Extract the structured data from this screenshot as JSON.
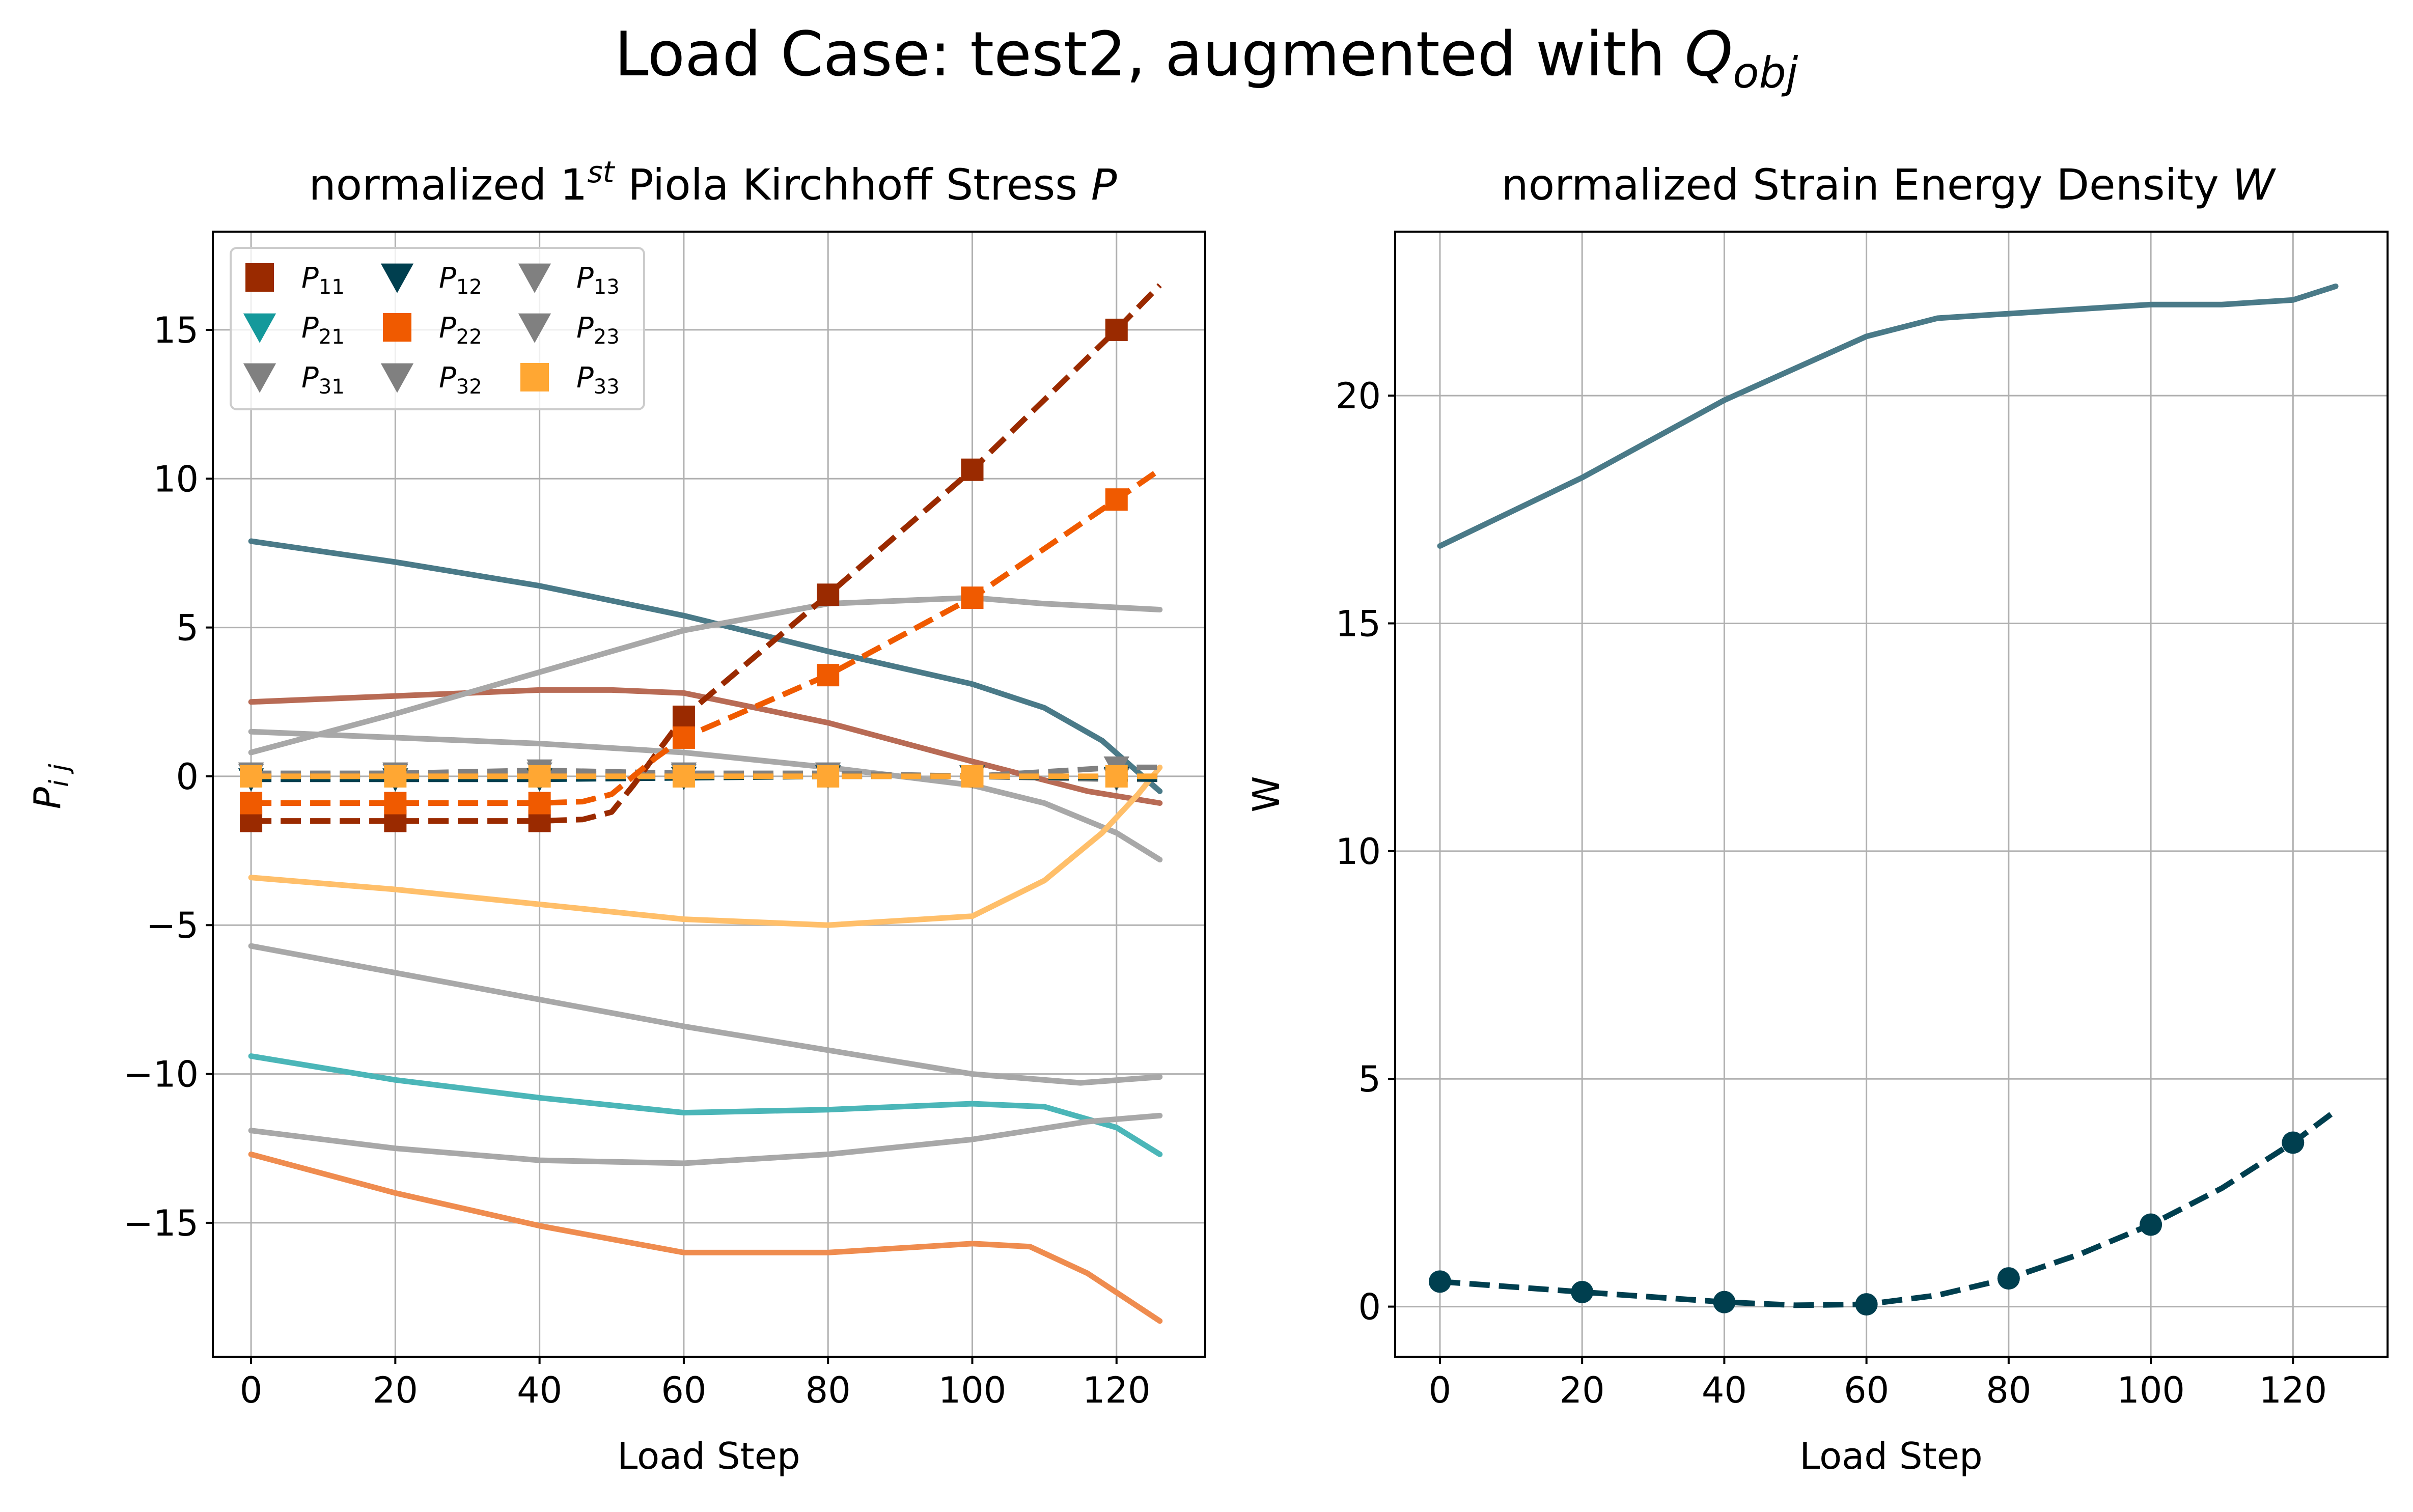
{
  "figure": {
    "suptitle_main": "Load Case: test2, augmented with ",
    "suptitle_math_Q": "Q",
    "suptitle_math_sub": "obj"
  },
  "chart_data": [
    {
      "type": "line",
      "title_main": "normalized 1",
      "title_sup": "st",
      "title_rest": " Piola Kirchhoff Stress ",
      "title_var": "P",
      "xlabel": "Load Step",
      "ylabel_main": "P",
      "ylabel_sub": "i j",
      "xlim": [
        -5.3,
        132.3
      ],
      "ylim": [
        -19.5,
        18.3
      ],
      "xticks": [
        0,
        20,
        40,
        60,
        80,
        100,
        120
      ],
      "yticks": [
        -15,
        -10,
        -5,
        0,
        5,
        10,
        15
      ],
      "xtick_labels": [
        "0",
        "20",
        "40",
        "60",
        "80",
        "100",
        "120"
      ],
      "ytick_labels": [
        "−15",
        "−10",
        "−5",
        "0",
        "5",
        "10",
        "15"
      ],
      "grid": true,
      "legend_placement": "top-left",
      "legend": [
        {
          "main": "P",
          "sub": "11",
          "marker": "square",
          "color": "#9a2a00"
        },
        {
          "main": "P",
          "sub": "12",
          "marker": "triangle-down",
          "color": "#003f4f"
        },
        {
          "main": "P",
          "sub": "13",
          "marker": "triangle-down",
          "color": "#808080"
        },
        {
          "main": "P",
          "sub": "21",
          "marker": "triangle-down",
          "color": "#14999b"
        },
        {
          "main": "P",
          "sub": "22",
          "marker": "square",
          "color": "#f05a00"
        },
        {
          "main": "P",
          "sub": "23",
          "marker": "triangle-down",
          "color": "#808080"
        },
        {
          "main": "P",
          "sub": "31",
          "marker": "triangle-down",
          "color": "#808080"
        },
        {
          "main": "P",
          "sub": "32",
          "marker": "triangle-down",
          "color": "#808080"
        },
        {
          "main": "P",
          "sub": "33",
          "marker": "square",
          "color": "#ffa733"
        }
      ],
      "solid_series": [
        {
          "color": "#4a7a88",
          "points": [
            [
              0,
              7.9
            ],
            [
              20,
              7.2
            ],
            [
              40,
              6.4
            ],
            [
              60,
              5.4
            ],
            [
              80,
              4.2
            ],
            [
              100,
              3.1
            ],
            [
              110,
              2.3
            ],
            [
              118,
              1.2
            ],
            [
              126,
              -0.5
            ]
          ]
        },
        {
          "color": "#b86b55",
          "points": [
            [
              0,
              2.5
            ],
            [
              20,
              2.7
            ],
            [
              40,
              2.9
            ],
            [
              50,
              2.9
            ],
            [
              60,
              2.8
            ],
            [
              80,
              1.8
            ],
            [
              100,
              0.5
            ],
            [
              116,
              -0.5
            ],
            [
              126,
              -0.9
            ]
          ]
        },
        {
          "color": "#a8a8a8",
          "points": [
            [
              0,
              0.8
            ],
            [
              20,
              2.1
            ],
            [
              40,
              3.5
            ],
            [
              60,
              4.9
            ],
            [
              80,
              5.8
            ],
            [
              100,
              6.0
            ],
            [
              110,
              5.8
            ],
            [
              126,
              5.6
            ]
          ]
        },
        {
          "color": "#a8a8a8",
          "points": [
            [
              0,
              1.5
            ],
            [
              20,
              1.3
            ],
            [
              40,
              1.1
            ],
            [
              60,
              0.8
            ],
            [
              80,
              0.3
            ],
            [
              100,
              -0.3
            ],
            [
              110,
              -0.9
            ],
            [
              120,
              -1.9
            ],
            [
              126,
              -2.8
            ]
          ]
        },
        {
          "color": "#ffbf6a",
          "points": [
            [
              0,
              -3.4
            ],
            [
              20,
              -3.8
            ],
            [
              40,
              -4.3
            ],
            [
              60,
              -4.8
            ],
            [
              80,
              -5.0
            ],
            [
              100,
              -4.7
            ],
            [
              110,
              -3.5
            ],
            [
              118,
              -1.9
            ],
            [
              123,
              -0.6
            ],
            [
              126,
              0.3
            ]
          ]
        },
        {
          "color": "#a8a8a8",
          "points": [
            [
              0,
              -5.7
            ],
            [
              20,
              -6.6
            ],
            [
              40,
              -7.5
            ],
            [
              60,
              -8.4
            ],
            [
              80,
              -9.2
            ],
            [
              100,
              -10.0
            ],
            [
              115,
              -10.3
            ],
            [
              126,
              -10.1
            ]
          ]
        },
        {
          "color": "#4bb6b8",
          "points": [
            [
              0,
              -9.4
            ],
            [
              20,
              -10.2
            ],
            [
              40,
              -10.8
            ],
            [
              60,
              -11.3
            ],
            [
              80,
              -11.2
            ],
            [
              100,
              -11.0
            ],
            [
              110,
              -11.1
            ],
            [
              120,
              -11.8
            ],
            [
              126,
              -12.7
            ]
          ]
        },
        {
          "color": "#a8a8a8",
          "points": [
            [
              0,
              -11.9
            ],
            [
              20,
              -12.5
            ],
            [
              40,
              -12.9
            ],
            [
              60,
              -13.0
            ],
            [
              80,
              -12.7
            ],
            [
              100,
              -12.2
            ],
            [
              116,
              -11.6
            ],
            [
              126,
              -11.4
            ]
          ]
        },
        {
          "color": "#ef8c4f",
          "points": [
            [
              0,
              -12.7
            ],
            [
              20,
              -14.0
            ],
            [
              40,
              -15.1
            ],
            [
              60,
              -16.0
            ],
            [
              80,
              -16.0
            ],
            [
              100,
              -15.7
            ],
            [
              108,
              -15.8
            ],
            [
              116,
              -16.7
            ],
            [
              126,
              -18.3
            ]
          ]
        }
      ],
      "dashed_series": [
        {
          "color": "#808080",
          "marker": "triangle-down",
          "points": [
            [
              0,
              0.1
            ],
            [
              20,
              0.1
            ],
            [
              40,
              0.2
            ],
            [
              60,
              0.1
            ],
            [
              80,
              0.1
            ],
            [
              100,
              0.0
            ],
            [
              120,
              0.3
            ],
            [
              126,
              0.3
            ]
          ],
          "marker_x": [
            0,
            20,
            40,
            60,
            80,
            100,
            120
          ]
        },
        {
          "color": "#808080",
          "marker": "triangle-down",
          "points": [
            [
              0,
              0.05
            ],
            [
              20,
              0.05
            ],
            [
              40,
              0.1
            ],
            [
              60,
              0.05
            ],
            [
              80,
              0.0
            ],
            [
              100,
              0.0
            ],
            [
              120,
              -0.1
            ],
            [
              126,
              -0.1
            ]
          ],
          "marker_x": [
            0,
            20,
            40,
            60,
            80,
            100,
            120
          ]
        },
        {
          "color": "#003f4f",
          "marker": "triangle-down",
          "points": [
            [
              0,
              -0.1
            ],
            [
              20,
              -0.1
            ],
            [
              40,
              -0.1
            ],
            [
              60,
              -0.05
            ],
            [
              80,
              0.0
            ],
            [
              100,
              0.0
            ],
            [
              120,
              -0.05
            ],
            [
              126,
              -0.1
            ]
          ],
          "marker_x": [
            0,
            20,
            40,
            60,
            80,
            100,
            120
          ]
        },
        {
          "color": "#ffa733",
          "marker": "square",
          "points": [
            [
              0,
              0.0
            ],
            [
              20,
              0.0
            ],
            [
              40,
              0.0
            ],
            [
              60,
              0.0
            ],
            [
              80,
              0.0
            ],
            [
              100,
              0.0
            ],
            [
              120,
              0.0
            ],
            [
              126,
              0.0
            ]
          ],
          "marker_x": [
            0,
            20,
            40,
            60,
            80,
            100,
            120
          ]
        },
        {
          "color": "#9a2a00",
          "marker": "square",
          "points": [
            [
              0,
              -1.5
            ],
            [
              20,
              -1.5
            ],
            [
              40,
              -1.5
            ],
            [
              46,
              -1.45
            ],
            [
              50,
              -1.2
            ],
            [
              53,
              -0.3
            ],
            [
              56,
              0.7
            ],
            [
              60,
              2.0
            ],
            [
              80,
              6.1
            ],
            [
              100,
              10.3
            ],
            [
              120,
              15.0
            ],
            [
              126,
              16.5
            ]
          ],
          "marker_x": [
            0,
            20,
            40,
            60,
            80,
            100,
            120
          ]
        },
        {
          "color": "#f05a00",
          "marker": "square",
          "points": [
            [
              0,
              -0.9
            ],
            [
              20,
              -0.9
            ],
            [
              40,
              -0.9
            ],
            [
              46,
              -0.85
            ],
            [
              50,
              -0.6
            ],
            [
              53,
              0.0
            ],
            [
              56,
              0.6
            ],
            [
              60,
              1.3
            ],
            [
              80,
              3.4
            ],
            [
              100,
              6.0
            ],
            [
              120,
              9.3
            ],
            [
              126,
              10.3
            ]
          ],
          "marker_x": [
            0,
            20,
            40,
            60,
            80,
            100,
            120
          ]
        }
      ]
    },
    {
      "type": "line",
      "title_main": "normalized Strain Energy Density ",
      "title_var": "W",
      "xlabel": "Load Step",
      "ylabel": "W",
      "xlim": [
        -6.3,
        133.3
      ],
      "ylim": [
        -1.1,
        23.6
      ],
      "xticks": [
        0,
        20,
        40,
        60,
        80,
        100,
        120
      ],
      "yticks": [
        0,
        5,
        10,
        15,
        20
      ],
      "xtick_labels": [
        "0",
        "20",
        "40",
        "60",
        "80",
        "100",
        "120"
      ],
      "ytick_labels": [
        "0",
        "5",
        "10",
        "15",
        "20"
      ],
      "grid": true,
      "solid_series": [
        {
          "color": "#4a7a88",
          "points": [
            [
              0,
              16.7
            ],
            [
              20,
              18.2
            ],
            [
              40,
              19.9
            ],
            [
              50,
              20.6
            ],
            [
              60,
              21.3
            ],
            [
              70,
              21.7
            ],
            [
              80,
              21.8
            ],
            [
              90,
              21.9
            ],
            [
              100,
              22.0
            ],
            [
              110,
              22.0
            ],
            [
              120,
              22.1
            ],
            [
              126,
              22.4
            ]
          ]
        }
      ],
      "dashed_series": [
        {
          "color": "#003f4f",
          "marker": "circle",
          "points": [
            [
              0,
              0.55
            ],
            [
              20,
              0.32
            ],
            [
              40,
              0.1
            ],
            [
              50,
              0.03
            ],
            [
              60,
              0.05
            ],
            [
              70,
              0.25
            ],
            [
              80,
              0.62
            ],
            [
              90,
              1.15
            ],
            [
              100,
              1.8
            ],
            [
              110,
              2.6
            ],
            [
              120,
              3.6
            ],
            [
              126,
              4.3
            ]
          ],
          "marker_x": [
            0,
            20,
            40,
            60,
            80,
            100,
            120
          ]
        }
      ]
    }
  ]
}
